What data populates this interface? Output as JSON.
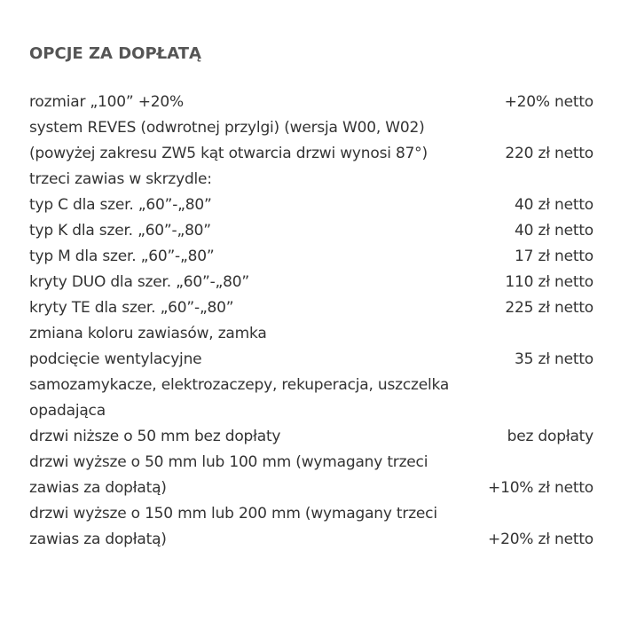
{
  "heading": "OPCJE ZA DOPŁATĄ",
  "items": [
    {
      "label": "rozmiar „100” +20%",
      "price": "+20% netto"
    },
    {
      "label": "system REVES (odwrotnej przylgi) (wersja W00, W02) (powyżej zakresu ZW5 kąt otwarcia drzwi wynosi 87°)",
      "price": "220 zł netto"
    },
    {
      "label": "trzeci zawias w skrzydle:",
      "price": ""
    },
    {
      "label": "typ C dla szer. „60”-„80”",
      "price": "40 zł netto"
    },
    {
      "label": "typ K dla szer. „60”-„80”",
      "price": "40 zł netto"
    },
    {
      "label": "typ M dla szer. „60”-„80”",
      "price": "17 zł netto"
    },
    {
      "label": "kryty DUO dla szer. „60”-„80”",
      "price": "110 zł netto"
    },
    {
      "label": "kryty TE dla szer. „60”-„80”",
      "price": "225 zł netto"
    },
    {
      "label": "zmiana koloru zawiasów, zamka",
      "price": ""
    },
    {
      "label": "podcięcie wentylacyjne",
      "price": "35 zł netto"
    },
    {
      "label": "samozamykacze, elektrozaczepy, rekuperacja, uszczelka opadająca",
      "price": ""
    },
    {
      "label": "drzwi niższe o 50 mm bez dopłaty",
      "price": "bez dopłaty"
    },
    {
      "label": "drzwi wyższe o 50 mm lub 100 mm (wymagany trzeci zawias za dopłatą)",
      "price": "+10% zł netto"
    },
    {
      "label": "drzwi wyższe o 150 mm lub 200 mm (wymagany trzeci zawias za dopłatą)",
      "price": "+20% zł netto"
    }
  ]
}
